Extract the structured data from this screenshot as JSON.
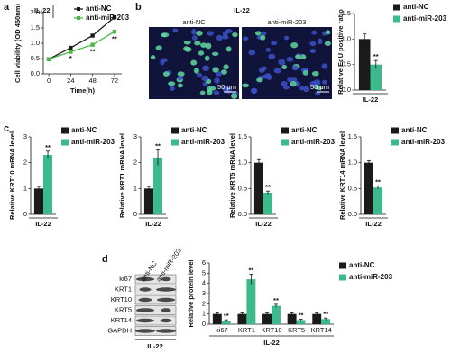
{
  "panel_labels": [
    "a",
    "b",
    "c",
    "d"
  ],
  "images": {
    "title": "IL-22",
    "labels": [
      "anti-NC",
      "anti-miR-203"
    ],
    "scale_bar": "50 μm"
  },
  "blot": {
    "lanes": [
      "anti-NC",
      "anti-miR-203"
    ],
    "rows": [
      "ki67",
      "KRT1",
      "KRT10",
      "KRT5",
      "KRT14",
      "GAPDH"
    ],
    "condition": "IL-22"
  },
  "chart_data": [
    {
      "type": "line",
      "ylabel": "Cell viability (OD 450nm)",
      "xlabel": "Time(h)",
      "annotation": "IL-22",
      "x": [
        0,
        24,
        48,
        72
      ],
      "xlim": [
        -6,
        80
      ],
      "xticks": [
        0,
        24,
        48,
        72
      ],
      "ylim": [
        0,
        2
      ],
      "yticks": [
        {
          "value": 0,
          "label": "0.0"
        },
        {
          "value": 0.5,
          "label": "0.5"
        },
        {
          "value": 1,
          "label": "1.0"
        },
        {
          "value": 1.5,
          "label": "1.5"
        },
        {
          "value": 2,
          "label": "2.0"
        }
      ],
      "series": [
        {
          "name": "anti-NC",
          "color": "#1a1a1a",
          "values": [
            0.48,
            0.85,
            1.25,
            1.85
          ],
          "errors": [
            0.02,
            0.04,
            0.05,
            0.05
          ]
        },
        {
          "name": "anti-miR-203",
          "color": "#4cb848",
          "values": [
            0.48,
            0.72,
            0.95,
            1.38
          ],
          "errors": [
            0.02,
            0.05,
            0.06,
            0.07
          ],
          "significance": [
            null,
            "*",
            "**",
            "**"
          ]
        }
      ]
    },
    {
      "type": "bar",
      "ylabel": "Relative EdU positive ratio",
      "categories": [
        "IL-22"
      ],
      "ylim": [
        0,
        1.5
      ],
      "yticks": [
        {
          "value": 0,
          "label": "0.0"
        },
        {
          "value": 0.5,
          "label": "0.5"
        },
        {
          "value": 1,
          "label": "1.0"
        },
        {
          "value": 1.5,
          "label": "1.5"
        }
      ],
      "series": [
        {
          "name": "anti-NC",
          "color": "#1a1a1a",
          "values": [
            1.0
          ],
          "errors": [
            0.1
          ]
        },
        {
          "name": "anti-miR-203",
          "color": "#3dba8c",
          "values": [
            0.5
          ],
          "errors": [
            0.08
          ],
          "significance": [
            "**"
          ]
        }
      ]
    },
    {
      "type": "bar",
      "ylabel": "Relative KRT10 mRNA level",
      "categories": [
        "IL-22"
      ],
      "ylim": [
        0,
        3
      ],
      "yticks": [
        0,
        1,
        2,
        3
      ],
      "series": [
        {
          "name": "anti-NC",
          "color": "#1a1a1a",
          "values": [
            1.0
          ],
          "errors": [
            0.08
          ]
        },
        {
          "name": "anti-miR-203",
          "color": "#3dba8c",
          "values": [
            2.3
          ],
          "errors": [
            0.15
          ],
          "significance": [
            "**"
          ]
        }
      ]
    },
    {
      "type": "bar",
      "ylabel": "Relative KRT1 mRNA level",
      "categories": [
        "IL-22"
      ],
      "ylim": [
        0,
        3
      ],
      "yticks": [
        0,
        1,
        2,
        3
      ],
      "series": [
        {
          "name": "anti-NC",
          "color": "#1a1a1a",
          "values": [
            1.0
          ],
          "errors": [
            0.08
          ]
        },
        {
          "name": "anti-miR-203",
          "color": "#3dba8c",
          "values": [
            2.2
          ],
          "errors": [
            0.3
          ],
          "significance": [
            "**"
          ]
        }
      ]
    },
    {
      "type": "bar",
      "ylabel": "Relative KRT5 mRNA level",
      "categories": [
        "IL-22"
      ],
      "ylim": [
        0,
        1.5
      ],
      "yticks": [
        {
          "value": 0,
          "label": "0.0"
        },
        {
          "value": 0.5,
          "label": "0.5"
        },
        {
          "value": 1,
          "label": "1.0"
        },
        {
          "value": 1.5,
          "label": "1.5"
        }
      ],
      "series": [
        {
          "name": "anti-NC",
          "color": "#1a1a1a",
          "values": [
            1.0
          ],
          "errors": [
            0.06
          ]
        },
        {
          "name": "anti-miR-203",
          "color": "#3dba8c",
          "values": [
            0.42
          ],
          "errors": [
            0.03
          ],
          "significance": [
            "**"
          ]
        }
      ]
    },
    {
      "type": "bar",
      "ylabel": "Relative KRT14 mRNA level",
      "categories": [
        "IL-22"
      ],
      "ylim": [
        0,
        1.5
      ],
      "yticks": [
        {
          "value": 0,
          "label": "0.0"
        },
        {
          "value": 0.5,
          "label": "0.5"
        },
        {
          "value": 1,
          "label": "1.0"
        },
        {
          "value": 1.5,
          "label": "1.5"
        }
      ],
      "series": [
        {
          "name": "anti-NC",
          "color": "#1a1a1a",
          "values": [
            1.0
          ],
          "errors": [
            0.04
          ]
        },
        {
          "name": "anti-miR-203",
          "color": "#3dba8c",
          "values": [
            0.52
          ],
          "errors": [
            0.03
          ],
          "significance": [
            "**"
          ]
        }
      ]
    },
    {
      "type": "bar",
      "ylabel": "Relative protein level",
      "xlabel": "IL-22",
      "categories": [
        "ki67",
        "KRT1",
        "KRT10",
        "KRT5",
        "KRT14"
      ],
      "ylim": [
        0,
        6
      ],
      "yticks": [
        0,
        1,
        2,
        3,
        4,
        5,
        6
      ],
      "series": [
        {
          "name": "anti-NC",
          "color": "#1a1a1a",
          "values": [
            1,
            1,
            1,
            1,
            1
          ],
          "errors": [
            0.12,
            0.12,
            0.1,
            0.1,
            0.1
          ]
        },
        {
          "name": "anti-miR-203",
          "color": "#3dba8c",
          "values": [
            0.35,
            4.4,
            1.8,
            0.4,
            0.5
          ],
          "errors": [
            0.08,
            0.5,
            0.15,
            0.08,
            0.1
          ],
          "significance": [
            "**",
            "**",
            "**",
            "**",
            "**"
          ]
        }
      ]
    }
  ]
}
